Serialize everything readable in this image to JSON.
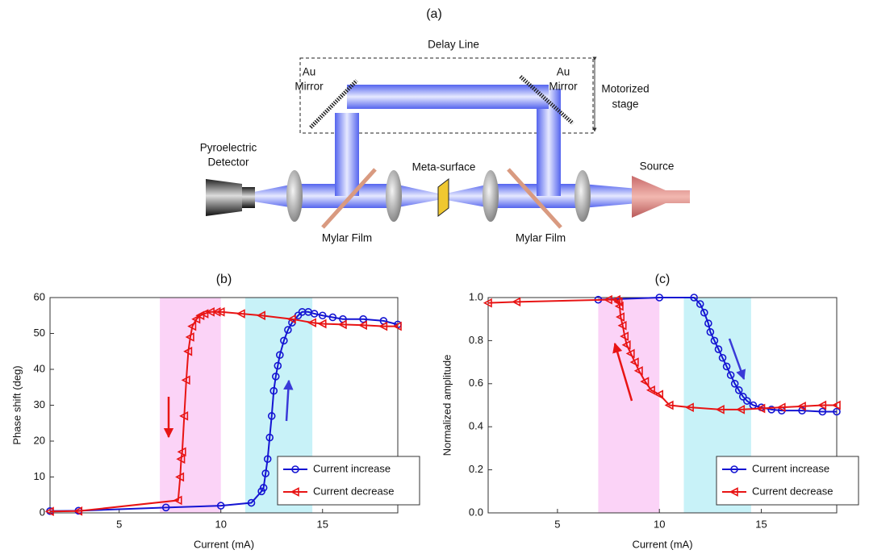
{
  "diagram": {
    "title": "(a)",
    "delay_line": "Delay Line",
    "left_mirror": [
      "Au",
      "Mirror"
    ],
    "right_mirror": [
      "Au",
      "Mirror"
    ],
    "stage": [
      "Motorized",
      "stage"
    ],
    "detector": [
      "Pyroelectric",
      "Detector"
    ],
    "metasurface": "Meta-surface",
    "source": "Source",
    "left_film": "Mylar Film",
    "right_film": "Mylar Film"
  },
  "chart_data": [
    {
      "type": "line",
      "title": "(b)",
      "x_label": "Current (mA)",
      "y_label": "Phase shift (deg)",
      "xlim": [
        1.6,
        18.7
      ],
      "xticks": [
        5,
        10,
        15
      ],
      "ylim": [
        0,
        60
      ],
      "yticks": [
        0,
        10,
        20,
        30,
        40,
        50,
        60
      ],
      "legend": "lower right",
      "shaded_ranges": [
        {
          "xlim": [
            7,
            10
          ],
          "color": "#fbd3f7"
        },
        {
          "xlim": [
            11.2,
            14.5
          ],
          "color": "#c8f2f8"
        }
      ],
      "series": [
        {
          "name": "Current increase",
          "color": "#1414d2",
          "marker": "o",
          "x": [
            1.6,
            3,
            7.3,
            10,
            11.5,
            12,
            12.1,
            12.2,
            12.3,
            12.4,
            12.5,
            12.6,
            12.7,
            12.8,
            12.9,
            13.1,
            13.3,
            13.5,
            13.8,
            14.0,
            14.3,
            14.6,
            15,
            15.5,
            16,
            17,
            18,
            18.7
          ],
          "values": [
            0.5,
            0.6,
            1.5,
            2,
            2.8,
            6,
            7,
            11,
            15,
            21,
            27,
            34,
            38,
            41,
            44,
            48,
            51,
            53,
            55,
            56,
            56,
            55.5,
            55,
            54.5,
            54,
            54,
            53.5,
            52.5
          ]
        },
        {
          "name": "Current decrease",
          "color": "#e81414",
          "marker": "<",
          "x": [
            18.7,
            18,
            17,
            16,
            15,
            14.5,
            13.5,
            12,
            11,
            10,
            9.8,
            9.5,
            9.2,
            9,
            8.8,
            8.6,
            8.5,
            8.4,
            8.3,
            8.2,
            8.1,
            8.05,
            8.0,
            7.9,
            3,
            1.6
          ],
          "values": [
            52,
            52,
            52.3,
            52.5,
            52.7,
            53,
            54,
            55,
            55.5,
            56,
            56,
            56,
            55.5,
            55,
            54,
            52,
            49,
            45,
            37,
            27,
            17,
            15,
            10,
            3.5,
            0.5,
            0.4
          ]
        }
      ]
    },
    {
      "type": "line",
      "title": "(c)",
      "x_label": "Current (mA)",
      "y_label": "Normalized amplitude",
      "xlim": [
        1.6,
        18.7
      ],
      "xticks": [
        5,
        10,
        15
      ],
      "ylim": [
        0,
        1
      ],
      "yticks": [
        {
          "value": 0,
          "label": "0.0"
        },
        0.2,
        0.4,
        0.6,
        0.8,
        {
          "value": 1,
          "label": "1.0"
        }
      ],
      "legend": "lower right",
      "shaded_ranges": [
        {
          "xlim": [
            7,
            10
          ],
          "color": "#fbd3f7"
        },
        {
          "xlim": [
            11.2,
            14.5
          ],
          "color": "#c8f2f8"
        }
      ],
      "series": [
        {
          "name": "Current increase",
          "color": "#1414d2",
          "marker": "o",
          "x": [
            7,
            10,
            11.7,
            12,
            12.2,
            12.4,
            12.5,
            12.7,
            12.9,
            13.1,
            13.3,
            13.5,
            13.7,
            13.9,
            14.1,
            14.3,
            14.6,
            15,
            15.5,
            16,
            17,
            18,
            18.7
          ],
          "values": [
            0.99,
            1.0,
            1.0,
            0.97,
            0.93,
            0.88,
            0.84,
            0.8,
            0.76,
            0.72,
            0.68,
            0.64,
            0.6,
            0.57,
            0.54,
            0.52,
            0.5,
            0.49,
            0.48,
            0.475,
            0.475,
            0.47,
            0.47
          ]
        },
        {
          "name": "Current decrease",
          "color": "#e81414",
          "marker": "<",
          "x": [
            18.7,
            18,
            17,
            16,
            15,
            14,
            13,
            11.5,
            10.5,
            10,
            9.6,
            9.3,
            9,
            8.8,
            8.6,
            8.4,
            8.3,
            8.2,
            8.1,
            8.05,
            8,
            7.9,
            7.5,
            3,
            1.6
          ],
          "values": [
            0.5,
            0.5,
            0.495,
            0.49,
            0.485,
            0.48,
            0.48,
            0.49,
            0.5,
            0.55,
            0.57,
            0.61,
            0.66,
            0.7,
            0.74,
            0.78,
            0.82,
            0.87,
            0.91,
            0.96,
            0.98,
            0.99,
            0.99,
            0.98,
            0.975
          ]
        }
      ]
    }
  ]
}
